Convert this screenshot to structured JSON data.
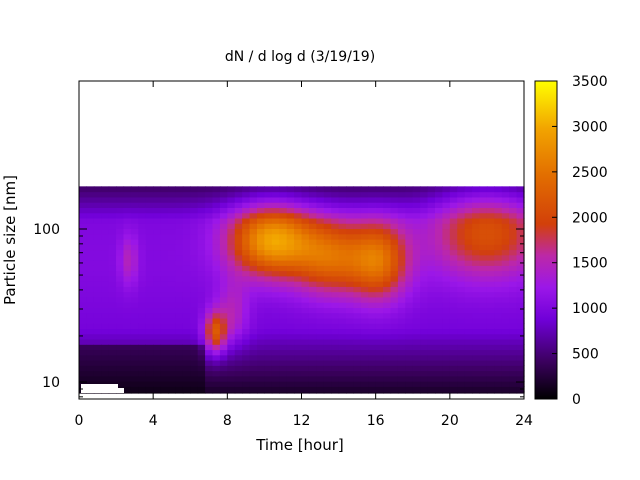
{
  "chart_data": {
    "type": "heatmap",
    "title": "dN / d log d (3/19/19)",
    "xlabel": "Time [hour]",
    "ylabel": "Particle size [nm]",
    "xlim": [
      0,
      24
    ],
    "xticks": [
      0,
      4,
      8,
      12,
      16,
      20,
      24
    ],
    "ylim": [
      8,
      190
    ],
    "yscale": "log",
    "yticks": [
      10,
      100
    ],
    "colorbar": {
      "range": [
        0,
        3500
      ],
      "ticks": [
        0,
        500,
        1000,
        1500,
        2000,
        2500,
        3000,
        3500
      ],
      "colormap": "gnuplot default (black - purple - orange - yellow)"
    },
    "grid": false,
    "features": [
      {
        "name": "late-night background",
        "time_hours": [
          0,
          6.8
        ],
        "size_nm": [
          20,
          150
        ],
        "value_approx": 1000
      },
      {
        "name": "weak mode near 3 h",
        "time_hours": 2.7,
        "size_nm": 60,
        "value_approx": 1550
      },
      {
        "name": "morning growth onset",
        "time_hours": 7.3,
        "size_nm": 20,
        "value_approx": 2100
      },
      {
        "name": "midday peak",
        "time_hours": 10.5,
        "size_nm": 85,
        "value_approx": 2700
      },
      {
        "name": "afternoon mode",
        "time_hours": 13.5,
        "size_nm": 65,
        "value_approx": 2200
      },
      {
        "name": "late-afternoon mode",
        "time_hours": 16.2,
        "size_nm": 65,
        "value_approx": 2300
      },
      {
        "name": "evening broad mode",
        "time_hours": 22,
        "size_nm": 95,
        "value_approx": 1950
      }
    ]
  }
}
